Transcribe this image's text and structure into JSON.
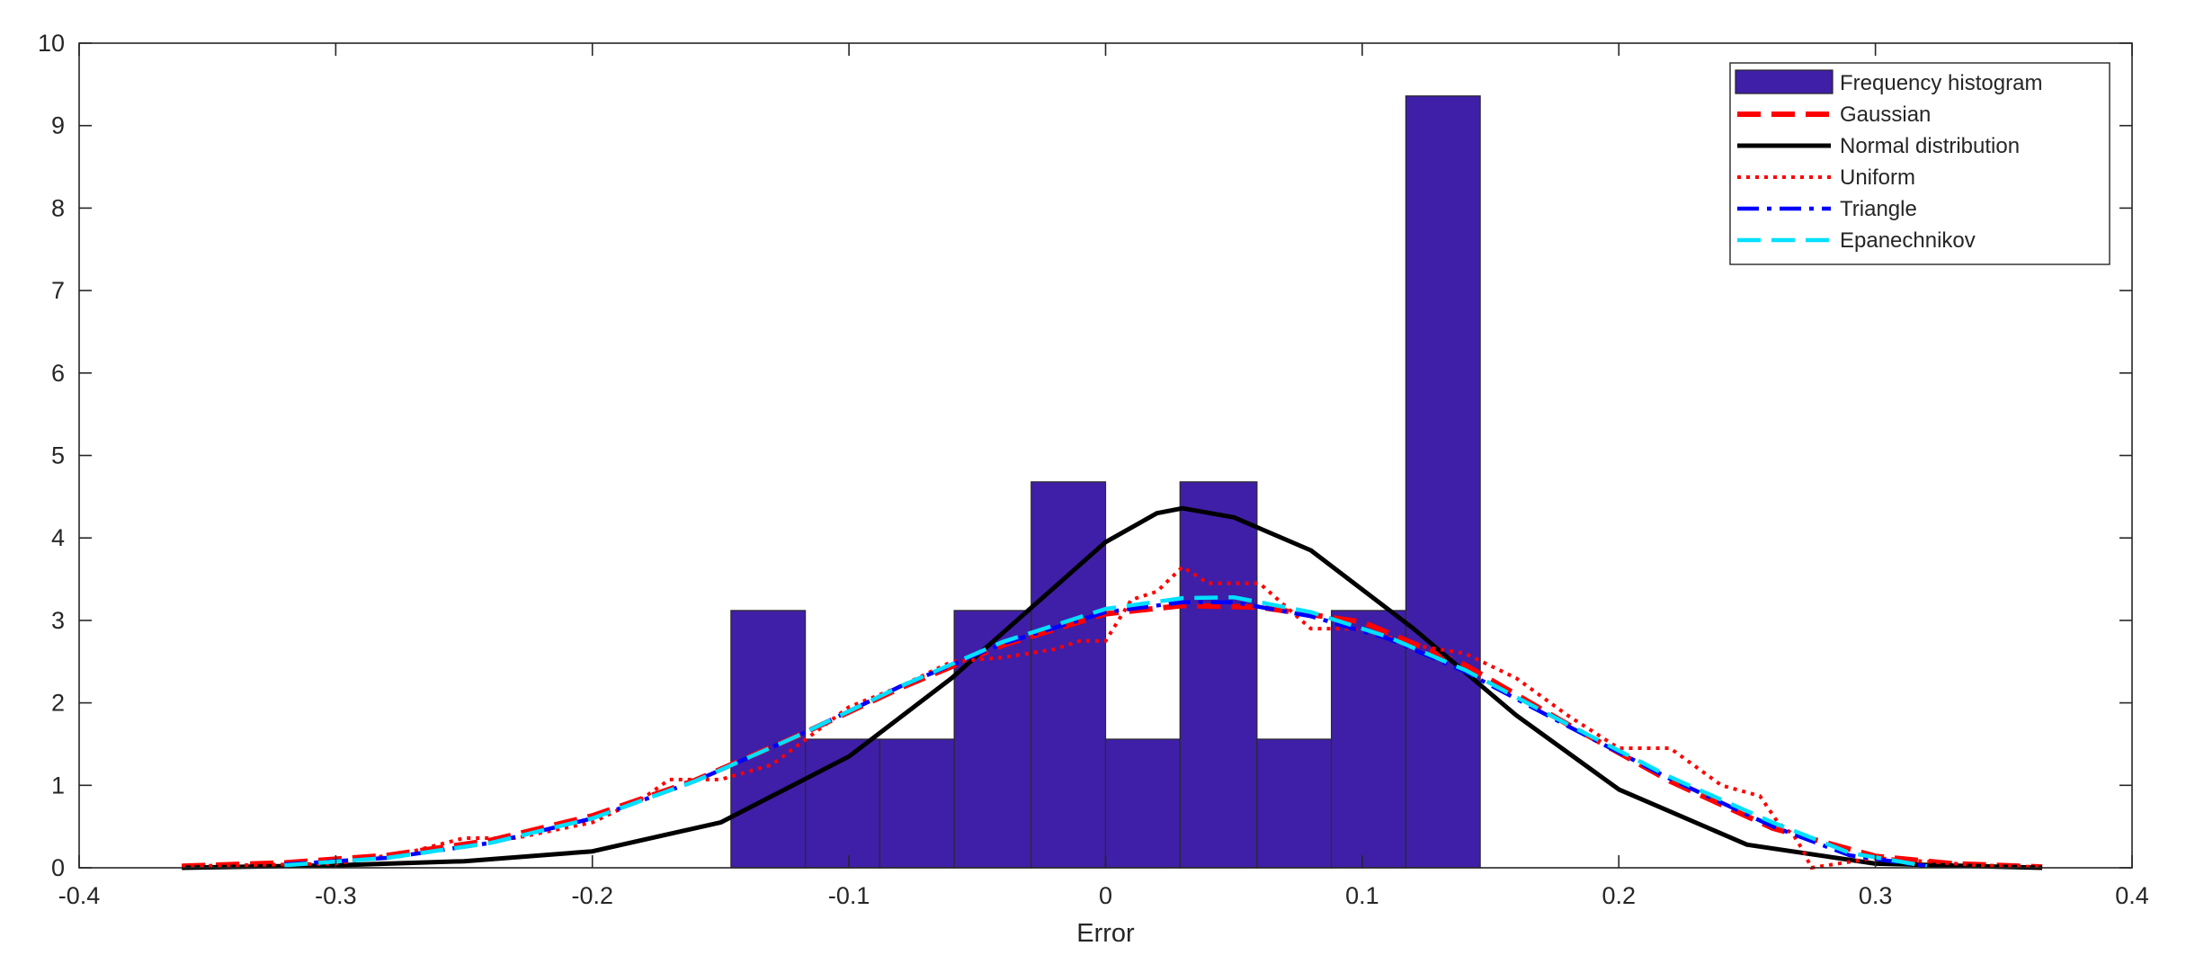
{
  "chart_data": {
    "type": "histogram",
    "title": "",
    "xlabel": "Error",
    "ylabel": "",
    "xlim": [
      -0.4,
      0.4
    ],
    "ylim": [
      0,
      10
    ],
    "x_ticks": [
      -0.4,
      -0.3,
      -0.2,
      -0.1,
      0,
      0.1,
      0.2,
      0.3,
      0.4
    ],
    "x_tick_labels": [
      "-0.4",
      "-0.3",
      "-0.2",
      "-0.1",
      "0",
      "0.1",
      "0.2",
      "0.3",
      "0.4"
    ],
    "y_ticks": [
      0,
      1,
      2,
      3,
      4,
      5,
      6,
      7,
      8,
      9,
      10
    ],
    "y_tick_labels": [
      "0",
      "1",
      "2",
      "3",
      "4",
      "5",
      "6",
      "7",
      "8",
      "9",
      "10"
    ],
    "grid": false,
    "legend_position": "top-right",
    "histogram": {
      "name": "Frequency histogram",
      "color": "#3f1fa8",
      "bin_edges": [
        -0.146,
        -0.117,
        -0.088,
        -0.059,
        -0.029,
        0.0,
        0.029,
        0.059,
        0.088,
        0.117,
        0.146
      ],
      "values": [
        3.12,
        1.56,
        1.56,
        3.12,
        4.68,
        1.56,
        4.68,
        1.56,
        3.12,
        9.36
      ]
    },
    "series": [
      {
        "name": "Gaussian",
        "color": "#ff0000",
        "style": "dashed",
        "x": [
          -0.36,
          -0.32,
          -0.28,
          -0.24,
          -0.2,
          -0.16,
          -0.12,
          -0.08,
          -0.04,
          0.0,
          0.03,
          0.06,
          0.1,
          0.14,
          0.18,
          0.22,
          0.26,
          0.3,
          0.33,
          0.365
        ],
        "y": [
          0.02,
          0.06,
          0.15,
          0.33,
          0.63,
          1.06,
          1.6,
          2.18,
          2.7,
          3.08,
          3.18,
          3.16,
          2.98,
          2.46,
          1.74,
          1.05,
          0.48,
          0.14,
          0.05,
          0.01
        ]
      },
      {
        "name": "Normal distribution",
        "color": "#000000",
        "style": "solid",
        "x": [
          -0.36,
          -0.3,
          -0.25,
          -0.2,
          -0.15,
          -0.1,
          -0.06,
          -0.02,
          0.0,
          0.02,
          0.03,
          0.05,
          0.08,
          0.12,
          0.16,
          0.2,
          0.25,
          0.3,
          0.365
        ],
        "y": [
          0.0,
          0.03,
          0.08,
          0.2,
          0.55,
          1.35,
          2.3,
          3.4,
          3.95,
          4.3,
          4.36,
          4.25,
          3.85,
          2.9,
          1.85,
          0.95,
          0.28,
          0.05,
          0.0
        ]
      },
      {
        "name": "Uniform",
        "color": "#ff0000",
        "style": "dotted",
        "x": [
          -0.36,
          -0.3,
          -0.27,
          -0.25,
          -0.23,
          -0.2,
          -0.18,
          -0.17,
          -0.15,
          -0.13,
          -0.1,
          -0.08,
          -0.06,
          -0.04,
          -0.02,
          -0.01,
          0.0,
          0.01,
          0.02,
          0.03,
          0.04,
          0.06,
          0.08,
          0.1,
          0.12,
          0.14,
          0.16,
          0.18,
          0.2,
          0.22,
          0.24,
          0.255,
          0.262,
          0.268,
          0.272,
          0.275,
          0.3,
          0.34,
          0.365
        ],
        "y": [
          0.02,
          0.05,
          0.2,
          0.36,
          0.36,
          0.55,
          0.85,
          1.07,
          1.07,
          1.25,
          1.95,
          2.2,
          2.5,
          2.55,
          2.65,
          2.75,
          2.75,
          3.25,
          3.35,
          3.65,
          3.45,
          3.45,
          2.9,
          2.9,
          2.7,
          2.6,
          2.3,
          1.85,
          1.45,
          1.45,
          1.0,
          0.87,
          0.55,
          0.4,
          0.2,
          0.0,
          0.12,
          0.03,
          0.01
        ]
      },
      {
        "name": "Triangle",
        "color": "#0000ff",
        "style": "dashdot",
        "x": [
          -0.32,
          -0.28,
          -0.24,
          -0.2,
          -0.16,
          -0.12,
          -0.08,
          -0.04,
          0.0,
          0.03,
          0.05,
          0.08,
          0.11,
          0.14,
          0.18,
          0.22,
          0.26,
          0.29,
          0.32
        ],
        "y": [
          0.04,
          0.12,
          0.3,
          0.6,
          1.05,
          1.6,
          2.2,
          2.72,
          3.1,
          3.22,
          3.22,
          3.05,
          2.78,
          2.38,
          1.72,
          1.08,
          0.5,
          0.15,
          0.02
        ]
      },
      {
        "name": "Epanechnikov",
        "color": "#00e0ff",
        "style": "dashed",
        "x": [
          -0.32,
          -0.28,
          -0.24,
          -0.2,
          -0.16,
          -0.12,
          -0.08,
          -0.04,
          0.0,
          0.03,
          0.05,
          0.08,
          0.11,
          0.14,
          0.18,
          0.22,
          0.26,
          0.29,
          0.32
        ],
        "y": [
          0.03,
          0.12,
          0.3,
          0.6,
          1.05,
          1.6,
          2.2,
          2.74,
          3.14,
          3.27,
          3.28,
          3.1,
          2.8,
          2.4,
          1.74,
          1.1,
          0.55,
          0.18,
          0.02
        ]
      }
    ]
  }
}
